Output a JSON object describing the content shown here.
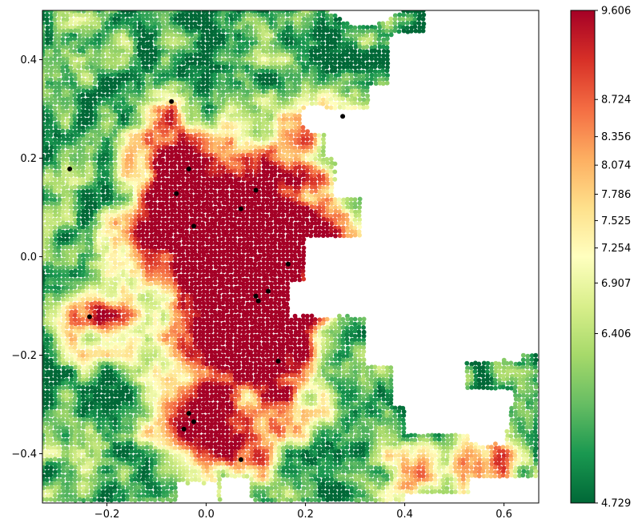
{
  "chart_data": {
    "type": "scatter",
    "title": "",
    "xlabel": "",
    "ylabel": "",
    "xlim": [
      -0.33,
      0.67
    ],
    "ylim": [
      -0.5,
      0.5
    ],
    "x_ticks": [
      {
        "value": -0.2,
        "label": "−0.2"
      },
      {
        "value": 0.0,
        "label": "0.0"
      },
      {
        "value": 0.2,
        "label": "0.2"
      },
      {
        "value": 0.4,
        "label": "0.4"
      },
      {
        "value": 0.6,
        "label": "0.6"
      }
    ],
    "y_ticks": [
      {
        "value": 0.4,
        "label": "0.4"
      },
      {
        "value": 0.2,
        "label": "0.2"
      },
      {
        "value": 0.0,
        "label": "0.0"
      },
      {
        "value": -0.2,
        "label": "−0.2"
      },
      {
        "value": -0.4,
        "label": "−0.4"
      }
    ],
    "colorbar": {
      "colormap": "RdYlGn_r",
      "range": [
        4.729,
        9.606
      ],
      "ticks": [
        {
          "value": 9.606,
          "label": "9.606"
        },
        {
          "value": 8.724,
          "label": "8.724"
        },
        {
          "value": 8.356,
          "label": "8.356"
        },
        {
          "value": 8.074,
          "label": "8.074"
        },
        {
          "value": 7.786,
          "label": "7.786"
        },
        {
          "value": 7.525,
          "label": "7.525"
        },
        {
          "value": 7.254,
          "label": "7.254"
        },
        {
          "value": 6.907,
          "label": "6.907"
        },
        {
          "value": 6.406,
          "label": "6.406"
        },
        {
          "value": 4.729,
          "label": "4.729"
        }
      ]
    },
    "black_points": [
      [
        -0.07,
        0.315
      ],
      [
        0.275,
        0.285
      ],
      [
        -0.275,
        0.178
      ],
      [
        -0.035,
        0.178
      ],
      [
        -0.06,
        0.128
      ],
      [
        0.1,
        0.135
      ],
      [
        0.07,
        0.097
      ],
      [
        -0.025,
        0.062
      ],
      [
        0.165,
        -0.015
      ],
      [
        0.125,
        -0.07
      ],
      [
        0.1,
        -0.08
      ],
      [
        0.105,
        -0.09
      ],
      [
        -0.235,
        -0.122
      ],
      [
        0.145,
        -0.212
      ],
      [
        -0.035,
        -0.318
      ],
      [
        -0.025,
        -0.335
      ],
      [
        -0.045,
        -0.35
      ],
      [
        0.07,
        -0.412
      ]
    ]
  }
}
